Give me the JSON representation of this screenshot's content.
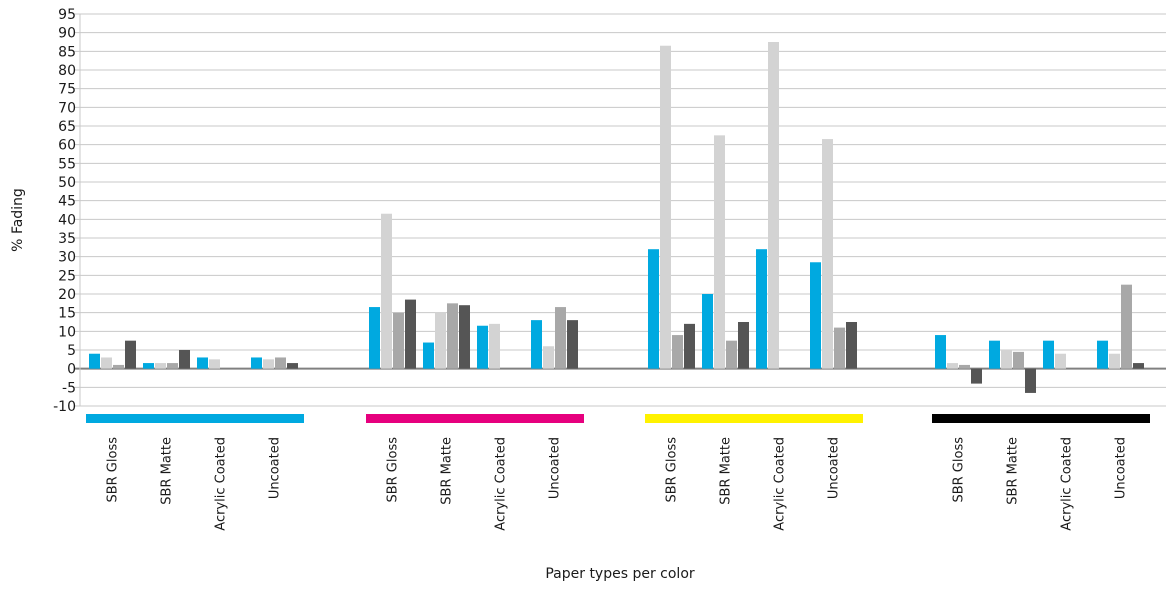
{
  "chart_data": {
    "type": "bar",
    "title": "",
    "xlabel": "Paper types per color",
    "ylabel": "% Fading",
    "ylim": [
      -10,
      95
    ],
    "yticks": [
      95,
      90,
      85,
      80,
      75,
      70,
      65,
      60,
      55,
      50,
      45,
      40,
      35,
      30,
      25,
      20,
      15,
      10,
      5,
      0,
      -5,
      -10
    ],
    "grid": true,
    "legend": "none",
    "groups": [
      {
        "color": "#00a9e0",
        "categories": [
          "SBR Gloss",
          "SBR Matte",
          "Acrylic Coated",
          "Uncoated"
        ],
        "series": [
          {
            "values": [
              4,
              1.5,
              3,
              3
            ]
          },
          {
            "values": [
              3,
              1.5,
              2.5,
              2.5
            ]
          },
          {
            "values": [
              1,
              1.5,
              null,
              3
            ]
          },
          {
            "values": [
              7.5,
              5,
              null,
              1.5
            ]
          }
        ]
      },
      {
        "color": "#e6007e",
        "categories": [
          "SBR Gloss",
          "SBR Matte",
          "Acrylic Coated",
          "Uncoated"
        ],
        "series": [
          {
            "values": [
              16.5,
              7,
              11.5,
              13
            ]
          },
          {
            "values": [
              41.5,
              15,
              12,
              6
            ]
          },
          {
            "values": [
              15,
              17.5,
              null,
              16.5
            ]
          },
          {
            "values": [
              18.5,
              17,
              null,
              13
            ]
          }
        ]
      },
      {
        "color": "#fff200",
        "categories": [
          "SBR Gloss",
          "SBR Matte",
          "Acrylic Coated",
          "Uncoated"
        ],
        "series": [
          {
            "values": [
              32,
              20,
              32,
              28.5
            ]
          },
          {
            "values": [
              86.5,
              62.5,
              87.5,
              61.5
            ]
          },
          {
            "values": [
              9,
              7.5,
              null,
              11
            ]
          },
          {
            "values": [
              12,
              12.5,
              null,
              12.5
            ]
          }
        ]
      },
      {
        "color": "#000000",
        "categories": [
          "SBR Gloss",
          "SBR Matte",
          "Acrylic Coated",
          "Uncoated"
        ],
        "series": [
          {
            "values": [
              9,
              7.5,
              7.5,
              7.5
            ]
          },
          {
            "values": [
              1.5,
              5,
              4,
              4
            ]
          },
          {
            "values": [
              1,
              4.5,
              null,
              22.5
            ]
          },
          {
            "values": [
              -4,
              -6.5,
              null,
              1.5
            ]
          }
        ]
      }
    ],
    "series_colors": [
      "#00a9e0",
      "#d3d3d3",
      "#a8a8a8",
      "#555555"
    ]
  }
}
